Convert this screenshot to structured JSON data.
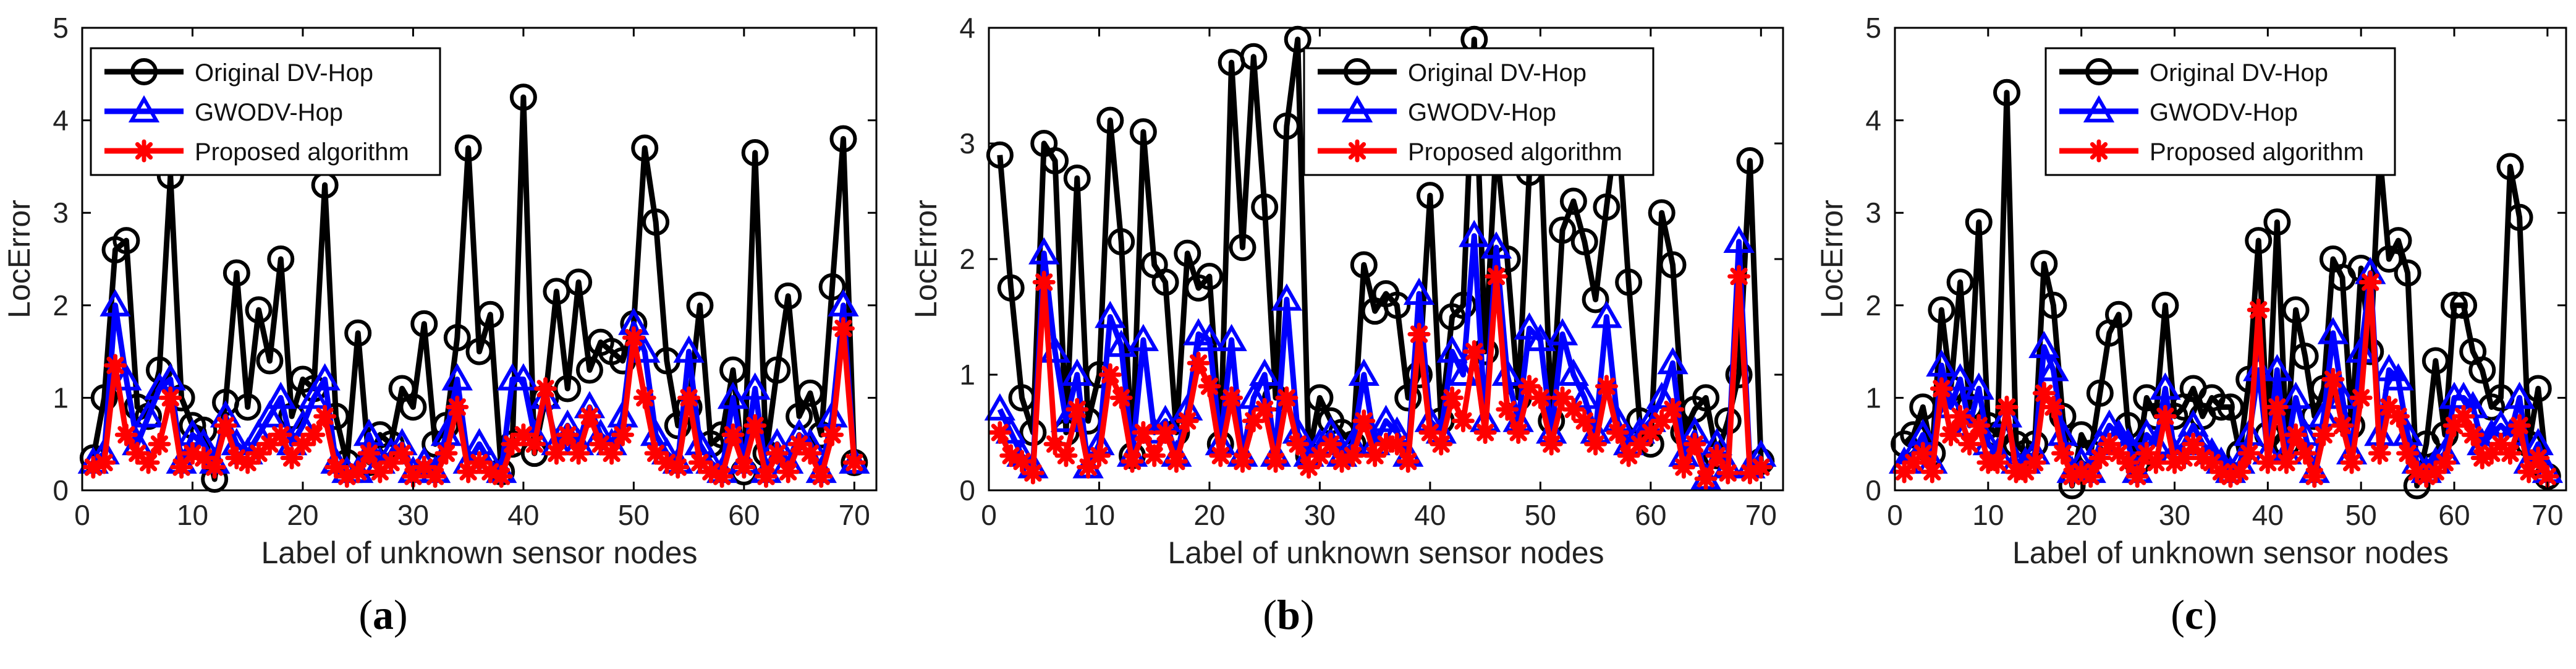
{
  "figure": {
    "panels": [
      {
        "label_open": "(",
        "letter": "a",
        "label_close": ")"
      },
      {
        "label_open": "(",
        "letter": "b",
        "label_close": ")"
      },
      {
        "label_open": "(",
        "letter": "c",
        "label_close": ")"
      }
    ]
  },
  "chart_data": [
    {
      "type": "line",
      "title": "",
      "xlabel": "Label of unknown sensor nodes",
      "ylabel": "LocError",
      "xlim": [
        0,
        72
      ],
      "ylim": [
        0,
        5
      ],
      "xticks": [
        0,
        10,
        20,
        30,
        40,
        50,
        60,
        70
      ],
      "yticks": [
        0,
        1,
        2,
        3,
        4,
        5
      ],
      "legend_position": "top-left",
      "grid": false,
      "x": [
        1,
        2,
        3,
        4,
        5,
        6,
        7,
        8,
        9,
        10,
        11,
        12,
        13,
        14,
        15,
        16,
        17,
        18,
        19,
        20,
        21,
        22,
        23,
        24,
        25,
        26,
        27,
        28,
        29,
        30,
        31,
        32,
        33,
        34,
        35,
        36,
        37,
        38,
        39,
        40,
        41,
        42,
        43,
        44,
        45,
        46,
        47,
        48,
        49,
        50,
        51,
        52,
        53,
        54,
        55,
        56,
        57,
        58,
        59,
        60,
        61,
        62,
        63,
        64,
        65,
        66,
        67,
        68,
        69,
        70
      ],
      "series": [
        {
          "name": "Original DV-Hop",
          "color": "#000000",
          "marker": "circle",
          "values": [
            0.35,
            1.0,
            2.6,
            2.7,
            0.9,
            0.8,
            1.3,
            3.4,
            1.0,
            0.7,
            0.65,
            0.12,
            0.95,
            2.35,
            0.9,
            1.95,
            1.4,
            2.5,
            0.8,
            1.2,
            1.1,
            3.3,
            0.8,
            0.3,
            1.7,
            0.3,
            0.6,
            0.5,
            1.1,
            0.9,
            1.8,
            0.5,
            0.7,
            1.65,
            3.7,
            1.5,
            1.9,
            0.2,
            0.5,
            4.25,
            0.4,
            1.0,
            2.15,
            1.1,
            2.25,
            1.3,
            1.6,
            1.5,
            1.4,
            1.8,
            3.7,
            2.9,
            1.4,
            0.7,
            0.9,
            2.0,
            0.5,
            0.6,
            1.3,
            0.2,
            3.65,
            0.4,
            1.3,
            2.1,
            0.8,
            1.05,
            0.6,
            2.2,
            3.8,
            0.3
          ]
        },
        {
          "name": "GWODV-Hop",
          "color": "#0000ff",
          "marker": "triangle",
          "values": [
            0.3,
            0.4,
            2.0,
            1.2,
            0.5,
            0.8,
            1.1,
            1.2,
            0.3,
            0.6,
            0.5,
            0.3,
            0.8,
            0.5,
            0.4,
            0.6,
            0.8,
            1.0,
            0.5,
            0.7,
            1.0,
            1.2,
            0.3,
            0.2,
            0.2,
            0.6,
            0.3,
            0.4,
            0.5,
            0.2,
            0.3,
            0.2,
            0.6,
            1.2,
            0.3,
            0.5,
            0.3,
            0.2,
            1.2,
            1.2,
            0.6,
            1.0,
            0.5,
            0.7,
            0.5,
            0.9,
            0.6,
            0.5,
            0.8,
            1.8,
            1.5,
            0.6,
            0.4,
            0.3,
            1.5,
            0.5,
            0.3,
            0.2,
            1.0,
            0.3,
            1.1,
            0.2,
            0.5,
            0.3,
            0.6,
            0.5,
            0.2,
            0.8,
            2.0,
            0.3
          ]
        },
        {
          "name": "Proposed algorithm",
          "color": "#ff0000",
          "marker": "asterisk",
          "values": [
            0.25,
            0.3,
            1.35,
            0.6,
            0.4,
            0.3,
            0.5,
            1.0,
            0.25,
            0.4,
            0.35,
            0.25,
            0.7,
            0.35,
            0.3,
            0.4,
            0.5,
            0.6,
            0.35,
            0.5,
            0.6,
            0.8,
            0.25,
            0.15,
            0.2,
            0.4,
            0.2,
            0.3,
            0.4,
            0.15,
            0.25,
            0.15,
            0.4,
            0.9,
            0.2,
            0.3,
            0.2,
            0.15,
            0.5,
            0.6,
            0.5,
            1.1,
            0.4,
            0.6,
            0.4,
            0.8,
            0.5,
            0.4,
            0.6,
            1.65,
            1.0,
            0.4,
            0.3,
            0.25,
            1.0,
            0.3,
            0.2,
            0.15,
            0.6,
            0.25,
            0.7,
            0.15,
            0.4,
            0.2,
            0.5,
            0.4,
            0.15,
            0.6,
            1.75,
            0.3
          ]
        }
      ]
    },
    {
      "type": "line",
      "title": "",
      "xlabel": "Label of unknown sensor nodes",
      "ylabel": "LocError",
      "xlim": [
        0,
        72
      ],
      "ylim": [
        0,
        4
      ],
      "xticks": [
        0,
        10,
        20,
        30,
        40,
        50,
        60,
        70
      ],
      "yticks": [
        0,
        1,
        2,
        3,
        4
      ],
      "legend_position": "top-right",
      "grid": false,
      "x": [
        1,
        2,
        3,
        4,
        5,
        6,
        7,
        8,
        9,
        10,
        11,
        12,
        13,
        14,
        15,
        16,
        17,
        18,
        19,
        20,
        21,
        22,
        23,
        24,
        25,
        26,
        27,
        28,
        29,
        30,
        31,
        32,
        33,
        34,
        35,
        36,
        37,
        38,
        39,
        40,
        41,
        42,
        43,
        44,
        45,
        46,
        47,
        48,
        49,
        50,
        51,
        52,
        53,
        54,
        55,
        56,
        57,
        58,
        59,
        60,
        61,
        62,
        63,
        64,
        65,
        66,
        67,
        68,
        69,
        70
      ],
      "series": [
        {
          "name": "Original DV-Hop",
          "color": "#000000",
          "marker": "circle",
          "values": [
            2.9,
            1.75,
            0.8,
            0.5,
            3.0,
            2.85,
            0.5,
            2.7,
            0.6,
            1.0,
            3.2,
            2.15,
            0.3,
            3.1,
            1.95,
            1.8,
            0.5,
            2.05,
            1.75,
            1.85,
            0.4,
            3.7,
            2.1,
            3.75,
            2.45,
            0.8,
            3.15,
            3.9,
            0.3,
            0.8,
            0.6,
            0.5,
            0.4,
            1.95,
            1.55,
            1.7,
            1.6,
            0.8,
            1.0,
            2.55,
            0.6,
            1.5,
            1.6,
            3.9,
            1.2,
            3.0,
            2.0,
            0.8,
            2.75,
            3.0,
            0.6,
            2.25,
            2.5,
            2.15,
            1.65,
            2.45,
            3.2,
            1.8,
            0.6,
            0.4,
            2.4,
            1.95,
            0.5,
            0.7,
            0.8,
            0.3,
            0.6,
            1.0,
            2.85,
            0.25
          ]
        },
        {
          "name": "GWODV-Hop",
          "color": "#0000ff",
          "marker": "triangle",
          "values": [
            0.7,
            0.5,
            0.3,
            0.2,
            2.05,
            1.2,
            0.6,
            1.0,
            0.2,
            0.4,
            1.5,
            1.25,
            0.3,
            1.3,
            0.5,
            0.6,
            0.3,
            0.7,
            1.35,
            1.3,
            0.4,
            1.3,
            0.3,
            0.8,
            1.0,
            0.3,
            1.65,
            0.5,
            0.3,
            0.4,
            0.5,
            0.3,
            0.4,
            1.0,
            0.4,
            0.6,
            0.5,
            0.3,
            1.7,
            0.6,
            0.5,
            1.2,
            1.0,
            2.2,
            0.6,
            2.1,
            1.0,
            0.6,
            1.4,
            1.3,
            0.5,
            1.35,
            1.0,
            0.8,
            0.5,
            1.5,
            0.6,
            0.4,
            0.5,
            0.6,
            0.8,
            1.1,
            0.3,
            0.5,
            0.1,
            0.4,
            0.2,
            2.15,
            0.2,
            0.3
          ]
        },
        {
          "name": "Proposed algorithm",
          "color": "#ff0000",
          "marker": "asterisk",
          "values": [
            0.5,
            0.3,
            0.25,
            0.15,
            1.8,
            0.4,
            0.3,
            0.7,
            0.2,
            0.3,
            1.0,
            0.8,
            0.25,
            0.5,
            0.3,
            0.5,
            0.25,
            0.6,
            1.1,
            0.9,
            0.3,
            0.8,
            0.25,
            0.6,
            0.7,
            0.25,
            0.8,
            0.4,
            0.2,
            0.3,
            0.4,
            0.25,
            0.3,
            0.6,
            0.3,
            0.4,
            0.4,
            0.25,
            1.35,
            0.5,
            0.4,
            0.8,
            0.6,
            1.2,
            0.5,
            1.85,
            0.7,
            0.5,
            0.9,
            0.8,
            0.4,
            0.8,
            0.7,
            0.6,
            0.4,
            0.9,
            0.5,
            0.3,
            0.4,
            0.5,
            0.6,
            0.7,
            0.2,
            0.4,
            0.1,
            0.3,
            0.15,
            1.85,
            0.15,
            0.2
          ]
        }
      ]
    },
    {
      "type": "line",
      "title": "",
      "xlabel": "Label of unknown sensor nodes",
      "ylabel": "LocError",
      "xlim": [
        0,
        72
      ],
      "ylim": [
        0,
        5
      ],
      "xticks": [
        0,
        10,
        20,
        30,
        40,
        50,
        60,
        70
      ],
      "yticks": [
        0,
        1,
        2,
        3,
        4,
        5
      ],
      "legend_position": "top-center",
      "grid": false,
      "x": [
        1,
        2,
        3,
        4,
        5,
        6,
        7,
        8,
        9,
        10,
        11,
        12,
        13,
        14,
        15,
        16,
        17,
        18,
        19,
        20,
        21,
        22,
        23,
        24,
        25,
        26,
        27,
        28,
        29,
        30,
        31,
        32,
        33,
        34,
        35,
        36,
        37,
        38,
        39,
        40,
        41,
        42,
        43,
        44,
        45,
        46,
        47,
        48,
        49,
        50,
        51,
        52,
        53,
        54,
        55,
        56,
        57,
        58,
        59,
        60,
        61,
        62,
        63,
        64,
        65,
        66,
        67,
        68,
        69,
        70
      ],
      "series": [
        {
          "name": "Original DV-Hop",
          "color": "#000000",
          "marker": "circle",
          "values": [
            0.5,
            0.6,
            0.9,
            0.4,
            1.95,
            1.1,
            2.25,
            0.9,
            2.9,
            0.7,
            0.6,
            4.3,
            0.5,
            0.4,
            0.5,
            2.45,
            2.0,
            0.8,
            0.05,
            0.6,
            0.4,
            1.05,
            1.7,
            1.9,
            0.7,
            0.3,
            1.0,
            0.8,
            2.0,
            0.8,
            0.9,
            1.1,
            0.8,
            1.0,
            0.9,
            0.9,
            0.4,
            1.2,
            2.7,
            0.6,
            2.9,
            0.5,
            1.95,
            1.45,
            0.8,
            1.1,
            2.5,
            2.3,
            0.7,
            2.4,
            1.5,
            3.65,
            2.5,
            2.7,
            2.35,
            0.05,
            0.5,
            1.4,
            0.6,
            2.0,
            2.0,
            1.5,
            1.3,
            0.9,
            1.0,
            3.5,
            2.95,
            0.5,
            1.1,
            0.15
          ]
        },
        {
          "name": "GWODV-Hop",
          "color": "#0000ff",
          "marker": "triangle",
          "values": [
            0.3,
            0.4,
            0.6,
            0.3,
            1.35,
            0.9,
            1.2,
            0.7,
            1.1,
            0.5,
            0.4,
            0.8,
            0.3,
            0.3,
            0.4,
            1.55,
            1.3,
            0.6,
            0.2,
            0.3,
            0.2,
            0.5,
            0.7,
            0.6,
            0.5,
            0.2,
            0.6,
            0.5,
            1.1,
            0.4,
            0.5,
            0.7,
            0.5,
            0.4,
            0.3,
            0.2,
            0.3,
            0.6,
            1.3,
            0.4,
            1.3,
            0.4,
            1.0,
            0.6,
            0.2,
            0.8,
            1.7,
            1.0,
            0.4,
            1.5,
            2.35,
            0.6,
            1.3,
            1.2,
            0.6,
            0.3,
            0.2,
            0.3,
            0.4,
            1.0,
            1.0,
            0.9,
            0.5,
            0.6,
            0.7,
            0.6,
            1.0,
            0.3,
            0.5,
            0.2
          ]
        },
        {
          "name": "Proposed algorithm",
          "color": "#ff0000",
          "marker": "asterisk",
          "values": [
            0.2,
            0.3,
            0.4,
            0.2,
            1.1,
            0.6,
            0.8,
            0.5,
            0.7,
            0.3,
            0.3,
            0.9,
            0.2,
            0.2,
            0.3,
            1.05,
            0.9,
            0.4,
            0.15,
            0.2,
            0.15,
            0.35,
            0.5,
            0.4,
            0.3,
            0.15,
            0.4,
            0.3,
            0.8,
            0.3,
            0.35,
            0.5,
            0.35,
            0.3,
            0.2,
            0.15,
            0.2,
            0.4,
            1.95,
            0.3,
            0.9,
            0.3,
            0.6,
            0.4,
            0.15,
            0.6,
            1.2,
            0.7,
            0.3,
            1.0,
            2.25,
            0.4,
            0.9,
            0.8,
            0.4,
            0.2,
            0.15,
            0.2,
            0.3,
            0.7,
            0.8,
            0.6,
            0.35,
            0.4,
            0.5,
            0.4,
            0.7,
            0.2,
            0.35,
            0.15
          ]
        }
      ]
    }
  ]
}
